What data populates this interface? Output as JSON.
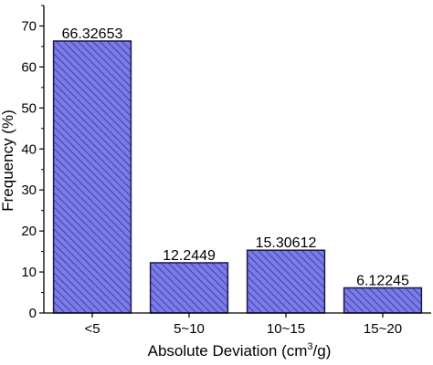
{
  "chart_data": {
    "type": "bar",
    "categories": [
      "<5",
      "5~10",
      "10~15",
      "15~20"
    ],
    "values": [
      66.32653,
      12.2449,
      15.30612,
      6.12245
    ],
    "data_labels": [
      "66.32653",
      "12.2449",
      "15.30612",
      "6.12245"
    ],
    "xlabel_pre": "Absolute Deviation (cm",
    "xlabel_sup": "3",
    "xlabel_post": "/g)",
    "ylabel": "Frequency (%)",
    "ylim": [
      0,
      75
    ],
    "yticks": [
      0,
      10,
      20,
      30,
      40,
      50,
      60,
      70
    ],
    "grid": false,
    "legend": "none",
    "bar_fill": "#7b7bea",
    "bar_edge": "#1a1a4a",
    "hatch_color": "#3b3b9a"
  }
}
